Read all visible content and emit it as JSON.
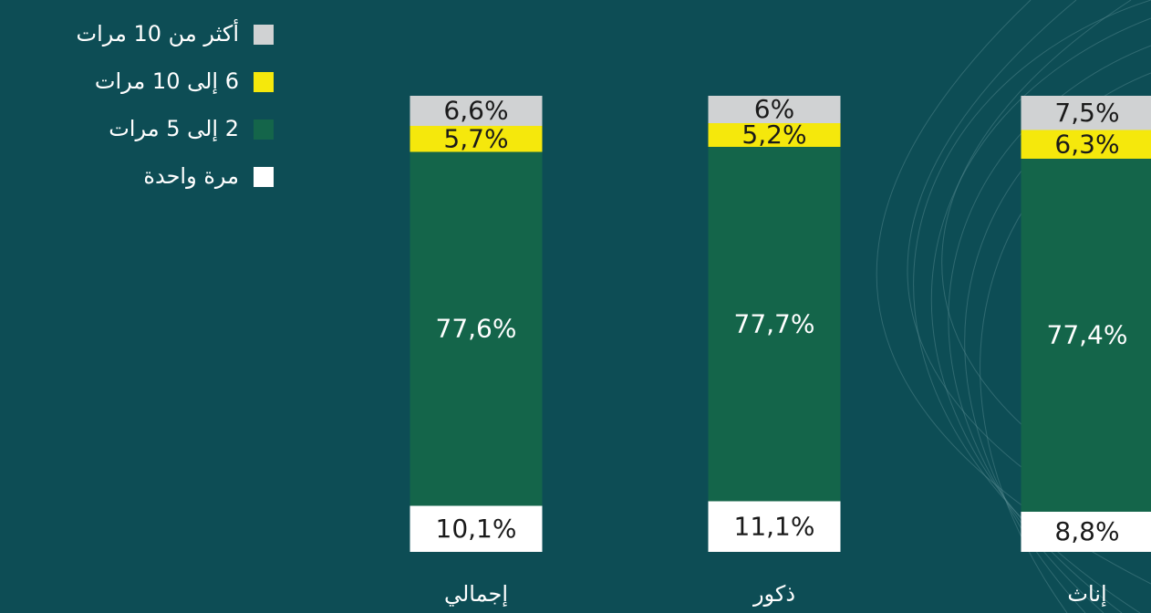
{
  "chart_data": {
    "type": "stacked-bar",
    "categories": [
      "إجمالي",
      "ذكور",
      "إناث"
    ],
    "series": [
      {
        "name": "مرة واحدة",
        "color": "#ffffff",
        "text_color": "#1a1a1a",
        "values": [
          10.1,
          11.1,
          8.8
        ],
        "value_labels": [
          "10,1%",
          "11,1%",
          "8,8%"
        ]
      },
      {
        "name": "2 إلى 5 مرات",
        "color": "#14654a",
        "text_color": "#ffffff",
        "values": [
          77.6,
          77.7,
          77.4
        ],
        "value_labels": [
          "77,6%",
          "77,7%",
          "77,4%"
        ]
      },
      {
        "name": "6 إلى 10 مرات",
        "color": "#f5e80c",
        "text_color": "#1a1a1a",
        "values": [
          5.7,
          5.2,
          6.3
        ],
        "value_labels": [
          "5,7%",
          "5,2%",
          "6,3%"
        ]
      },
      {
        "name": "أكثر من 10 مرات",
        "color": "#d0d2d3",
        "text_color": "#1a1a1a",
        "values": [
          6.6,
          6,
          7.5
        ],
        "value_labels": [
          "6,6%",
          "6%",
          "7,5%"
        ]
      }
    ]
  }
}
